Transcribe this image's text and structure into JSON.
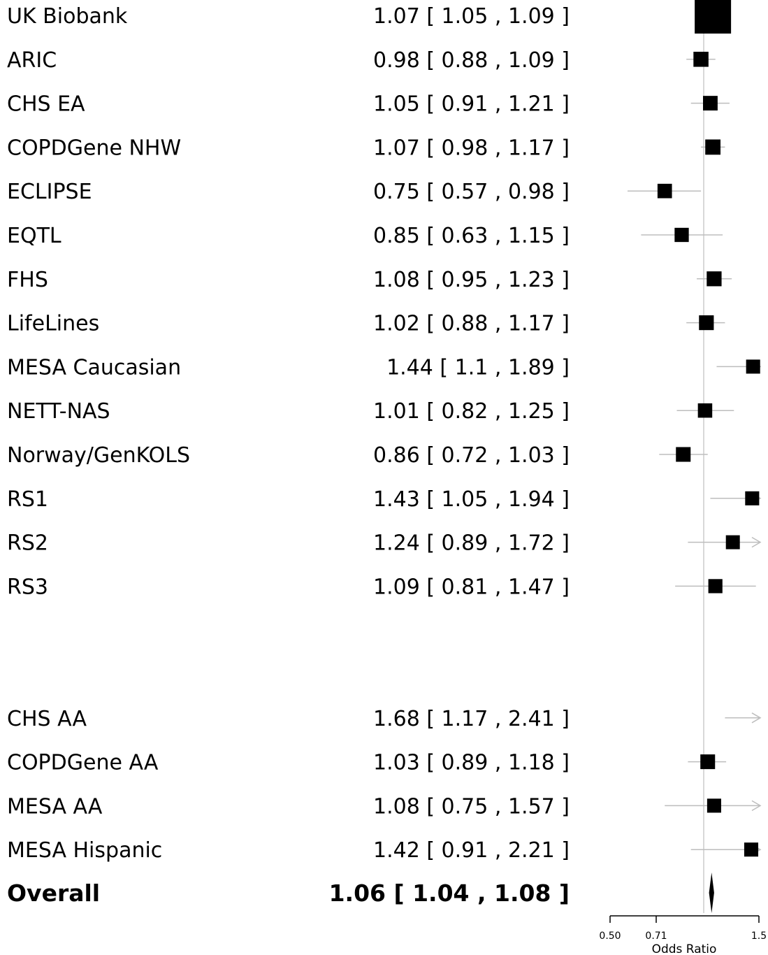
{
  "chart_data": {
    "type": "forest",
    "title": "",
    "xlabel": "Odds Ratio",
    "x_scale": "log",
    "x_ticks": [
      "0.50",
      "0.71",
      "1.5"
    ],
    "xlim": [
      0.5,
      1.5
    ],
    "reference_line": 1.0,
    "studies": [
      {
        "label": "UK Biobank",
        "estimate_text": "1.07 [ 1.05 , 1.09 ]",
        "or": 1.07,
        "lower": 1.05,
        "upper": 1.09,
        "weight": 1.0
      },
      {
        "label": "ARIC",
        "estimate_text": "0.98 [ 0.88 , 1.09 ]",
        "or": 0.98,
        "lower": 0.88,
        "upper": 1.09,
        "weight": 0.4
      },
      {
        "label": "CHS EA",
        "estimate_text": "1.05 [ 0.91 , 1.21 ]",
        "or": 1.05,
        "lower": 0.91,
        "upper": 1.21,
        "weight": 0.35
      },
      {
        "label": "COPDGene NHW",
        "estimate_text": "1.07 [ 0.98 , 1.17 ]",
        "or": 1.07,
        "lower": 0.98,
        "upper": 1.17,
        "weight": 0.42
      },
      {
        "label": "ECLIPSE",
        "estimate_text": "0.75 [ 0.57 , 0.98 ]",
        "or": 0.75,
        "lower": 0.57,
        "upper": 0.98,
        "weight": 0.33
      },
      {
        "label": "EQTL",
        "estimate_text": "0.85 [ 0.63 , 1.15 ]",
        "or": 0.85,
        "lower": 0.63,
        "upper": 1.15,
        "weight": 0.3
      },
      {
        "label": "FHS",
        "estimate_text": "1.08 [ 0.95 , 1.23 ]",
        "or": 1.08,
        "lower": 0.95,
        "upper": 1.23,
        "weight": 0.38
      },
      {
        "label": "LifeLines",
        "estimate_text": "1.02 [ 0.88 , 1.17 ]",
        "or": 1.02,
        "lower": 0.88,
        "upper": 1.17,
        "weight": 0.37
      },
      {
        "label": "MESA Caucasian",
        "estimate_text": "1.44 [ 1.1 , 1.89 ]",
        "or": 1.44,
        "lower": 1.1,
        "upper": 1.89,
        "weight": 0.28
      },
      {
        "label": "NETT-NAS",
        "estimate_text": "1.01 [ 0.82 , 1.25 ]",
        "or": 1.01,
        "lower": 0.82,
        "upper": 1.25,
        "weight": 0.32
      },
      {
        "label": "Norway/GenKOLS",
        "estimate_text": "0.86 [ 0.72 , 1.03 ]",
        "or": 0.86,
        "lower": 0.72,
        "upper": 1.03,
        "weight": 0.36
      },
      {
        "label": "RS1",
        "estimate_text": "1.43 [ 1.05 , 1.94 ]",
        "or": 1.43,
        "lower": 1.05,
        "upper": 1.94,
        "weight": 0.28
      },
      {
        "label": "RS2",
        "estimate_text": "1.24 [ 0.89 , 1.72 ]",
        "or": 1.24,
        "lower": 0.89,
        "upper": 1.72,
        "weight": 0.27
      },
      {
        "label": "RS3",
        "estimate_text": "1.09 [ 0.81 , 1.47 ]",
        "or": 1.09,
        "lower": 0.81,
        "upper": 1.47,
        "weight": 0.29
      },
      {
        "label": "CHS AA",
        "estimate_text": "1.68 [ 1.17 , 2.41 ]",
        "or": 1.68,
        "lower": 1.17,
        "upper": 2.41,
        "weight": 0.27
      },
      {
        "label": "COPDGene AA",
        "estimate_text": "1.03 [ 0.89 , 1.18 ]",
        "or": 1.03,
        "lower": 0.89,
        "upper": 1.18,
        "weight": 0.36
      },
      {
        "label": "MESA AA",
        "estimate_text": "1.08 [ 0.75 , 1.57 ]",
        "or": 1.08,
        "lower": 0.75,
        "upper": 1.57,
        "weight": 0.28
      },
      {
        "label": "MESA Hispanic",
        "estimate_text": "1.42 [ 0.91 , 2.21 ]",
        "or": 1.42,
        "lower": 0.91,
        "upper": 2.21,
        "weight": 0.28
      }
    ],
    "overall": {
      "label": "Overall",
      "estimate_text": "1.06 [ 1.04 , 1.08 ]",
      "or": 1.06,
      "lower": 1.04,
      "upper": 1.08
    }
  }
}
